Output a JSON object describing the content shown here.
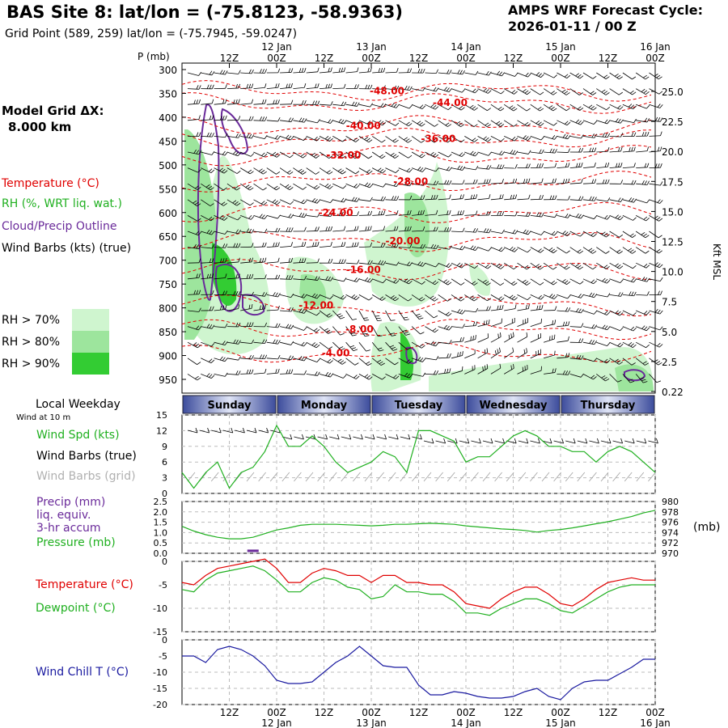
{
  "header": {
    "title": "BAS Site 8:  lat/lon = (-75.8123, -58.9363)",
    "subtitle": "Grid Point (589, 259) lat/lon = (-75.7945, -59.0247)",
    "cycle_label": "AMPS WRF Forecast Cycle:",
    "cycle_value": "2026-01-11 / 00  Z"
  },
  "left_labels": {
    "model_grid": "Model Grid ΔX:",
    "model_grid_value": "8.000 km",
    "temperature": "Temperature (°C)",
    "rh": "RH (%, WRT liq. wat.)",
    "cloud": "Cloud/Precip Outline",
    "wind_barbs": "Wind Barbs (kts) (true)",
    "rh70": "RH > 70%",
    "rh80": "RH > 80%",
    "rh90": "RH > 90%",
    "local_weekday": "Local Weekday",
    "wind_10m": "Wind at 10 m",
    "wind_spd": "Wind Spd (kts)",
    "wind_barbs_true": "Wind Barbs (true)",
    "wind_barbs_grid": "Wind Barbs (grid)",
    "precip": "Precip (mm)",
    "precip_2": "liq. equiv.",
    "precip_3": "3-hr accum",
    "pressure": "Pressure (mb)",
    "temp2": "Temperature (°C)",
    "dewpoint": "Dewpoint (°C)",
    "windchill": "Wind Chill T (°C)",
    "p_unit": "P (mb)",
    "right_unit": "Kft MSL",
    "mb_unit": "(mb)"
  },
  "colors": {
    "temperature": "#e00000",
    "rh": "#20b020",
    "cloud": "#6a2a9a",
    "windchill": "#1a1aa0",
    "grid_barbs": "#a0a0a0",
    "rh70": "#cff5cf",
    "rh80": "#9de59d",
    "rh90": "#33cc33"
  },
  "time_axis": {
    "top_hours": [
      "12Z",
      "00Z",
      "12Z",
      "00Z",
      "12Z",
      "00Z",
      "12Z",
      "00Z",
      "12Z",
      "00Z"
    ],
    "top_dates": [
      "12 Jan",
      "13 Jan",
      "14 Jan",
      "15 Jan",
      "16 Jan"
    ],
    "bottom_hours": [
      "12Z",
      "00Z",
      "12Z",
      "00Z",
      "12Z",
      "00Z",
      "12Z",
      "00Z",
      "12Z",
      "00Z"
    ],
    "bottom_dates": [
      "12 Jan",
      "13 Jan",
      "14 Jan",
      "15 Jan",
      "16 Jan"
    ],
    "weekdays": [
      "Sunday",
      "Monday",
      "Tuesday",
      "Wednesday",
      "Thursday"
    ]
  },
  "chart_data": [
    {
      "type": "heatmap",
      "name": "cross-section",
      "pressure_ticks": [
        300,
        350,
        400,
        450,
        500,
        550,
        600,
        650,
        700,
        750,
        800,
        850,
        900,
        950
      ],
      "height_ticks_kft": [
        "25.0",
        "22.5",
        "20.0",
        "17.5",
        "15.0",
        "12.5",
        "10.0",
        "7.5",
        "5.0",
        "2.5",
        "0.22"
      ],
      "isotherm_labels": [
        {
          "label": "-48.00",
          "hour": 52,
          "p": 345
        },
        {
          "label": "-44.00",
          "hour": 68,
          "p": 370
        },
        {
          "label": "-40.00",
          "hour": 46,
          "p": 418
        },
        {
          "label": "-36.00",
          "hour": 65,
          "p": 445
        },
        {
          "label": "-32.00",
          "hour": 41,
          "p": 480
        },
        {
          "label": "-28.00",
          "hour": 58,
          "p": 535
        },
        {
          "label": "-24.00",
          "hour": 39,
          "p": 600
        },
        {
          "label": "-20.00",
          "hour": 56,
          "p": 660
        },
        {
          "label": "-16.00",
          "hour": 46,
          "p": 720
        },
        {
          "label": "-12.00",
          "hour": 34,
          "p": 795
        },
        {
          "label": "-8.00",
          "hour": 45,
          "p": 845
        },
        {
          "label": "-4.00",
          "hour": 39,
          "p": 895
        }
      ],
      "forecast_hours": [
        0,
        120
      ]
    },
    {
      "type": "line",
      "name": "wind-speed",
      "hours": [
        0,
        3,
        6,
        9,
        12,
        15,
        18,
        21,
        24,
        27,
        30,
        33,
        36,
        39,
        42,
        45,
        48,
        51,
        54,
        57,
        60,
        63,
        66,
        69,
        72,
        75,
        78,
        81,
        84,
        87,
        90,
        93,
        96,
        99,
        102,
        105,
        108,
        111,
        114,
        117,
        120
      ],
      "values": [
        4,
        1,
        4,
        6,
        1,
        4,
        5,
        8,
        13,
        9,
        9,
        11,
        9,
        6,
        4,
        5,
        6,
        8,
        7,
        4,
        12,
        12,
        11,
        10,
        6,
        7,
        7,
        9,
        11,
        12,
        11,
        9,
        9,
        8,
        8,
        6,
        8,
        9,
        8,
        6,
        4
      ],
      "ylim": [
        0,
        15
      ],
      "yticks": [
        0,
        3,
        6,
        9,
        12,
        15
      ]
    },
    {
      "type": "line",
      "name": "pressure",
      "hours": [
        0,
        3,
        6,
        9,
        12,
        15,
        18,
        21,
        24,
        27,
        30,
        33,
        36,
        39,
        42,
        45,
        48,
        51,
        54,
        57,
        60,
        63,
        66,
        69,
        72,
        75,
        78,
        81,
        84,
        87,
        90,
        93,
        96,
        99,
        102,
        105,
        108,
        111,
        114,
        117,
        120
      ],
      "values": [
        975.2,
        974.3,
        973.6,
        973.1,
        972.8,
        972.8,
        973.1,
        973.8,
        974.5,
        974.9,
        975.4,
        975.6,
        975.6,
        975.6,
        975.5,
        975.4,
        975.3,
        975.4,
        975.6,
        975.6,
        975.7,
        975.8,
        975.7,
        975.6,
        975.3,
        975.1,
        974.9,
        974.7,
        974.6,
        974.4,
        974.1,
        974.4,
        974.6,
        974.9,
        975.3,
        975.7,
        976.1,
        976.6,
        977.1,
        977.8,
        978.3
      ],
      "precip_ylim": [
        0,
        2.5
      ],
      "precip_yticks": [
        "0.0",
        "0.5",
        "1.0",
        "1.5",
        "2.0",
        "2.5"
      ],
      "pressure_ylim": [
        970,
        980
      ],
      "pressure_yticks": [
        970,
        972,
        974,
        976,
        978,
        980
      ],
      "precip": [
        {
          "hour": 18,
          "value": 0.1
        }
      ]
    },
    {
      "type": "line",
      "name": "temperature-dewpoint",
      "series": [
        {
          "name": "Temperature",
          "hours": [
            0,
            3,
            6,
            9,
            12,
            15,
            18,
            21,
            24,
            27,
            30,
            33,
            36,
            39,
            42,
            45,
            48,
            51,
            54,
            57,
            60,
            63,
            66,
            69,
            72,
            75,
            78,
            81,
            84,
            87,
            90,
            93,
            96,
            99,
            102,
            105,
            108,
            111,
            114,
            117,
            120
          ],
          "values": [
            -4.5,
            -5,
            -3,
            -1.5,
            -1,
            -0.5,
            0,
            0.5,
            -1.5,
            -4.5,
            -4.5,
            -2.5,
            -1.5,
            -2,
            -3,
            -3,
            -4.5,
            -3,
            -3,
            -4.5,
            -4.5,
            -5,
            -5,
            -6.5,
            -9,
            -9.5,
            -10,
            -8,
            -6.5,
            -5.5,
            -5.5,
            -7,
            -9,
            -9.5,
            -8,
            -6,
            -4.5,
            -4,
            -3.5,
            -4,
            -4
          ]
        },
        {
          "name": "Dewpoint",
          "hours": [
            0,
            3,
            6,
            9,
            12,
            15,
            18,
            21,
            24,
            27,
            30,
            33,
            36,
            39,
            42,
            45,
            48,
            51,
            54,
            57,
            60,
            63,
            66,
            69,
            72,
            75,
            78,
            81,
            84,
            87,
            90,
            93,
            96,
            99,
            102,
            105,
            108,
            111,
            114,
            117,
            120
          ],
          "values": [
            -6,
            -6.5,
            -4,
            -2.5,
            -2,
            -1.5,
            -1,
            -2,
            -4,
            -6.5,
            -6.5,
            -4.5,
            -3.5,
            -4,
            -5.5,
            -6,
            -8,
            -7.5,
            -5,
            -6.5,
            -6.5,
            -7,
            -7,
            -8.5,
            -11,
            -11,
            -11.5,
            -10,
            -9,
            -8,
            -8,
            -9,
            -10.5,
            -11,
            -9.5,
            -8,
            -6.5,
            -5.5,
            -5,
            -5,
            -5
          ]
        }
      ],
      "ylim": [
        -15,
        0
      ],
      "yticks": [
        -15,
        -10,
        -5,
        0
      ]
    },
    {
      "type": "line",
      "name": "wind-chill",
      "hours": [
        0,
        3,
        6,
        9,
        12,
        15,
        18,
        21,
        24,
        27,
        30,
        33,
        36,
        39,
        42,
        45,
        48,
        51,
        54,
        57,
        60,
        63,
        66,
        69,
        72,
        75,
        78,
        81,
        84,
        87,
        90,
        93,
        96,
        99,
        102,
        105,
        108,
        111,
        114,
        117,
        120
      ],
      "values": [
        -5,
        -5,
        -7,
        -3,
        -2,
        -3,
        -5,
        -8,
        -12.5,
        -13.5,
        -13.5,
        -13,
        -10,
        -7,
        -5,
        -2,
        -5,
        -8,
        -8.5,
        -8.5,
        -14,
        -17,
        -17,
        -16,
        -16.5,
        -17.5,
        -18,
        -18,
        -17.5,
        -16,
        -15,
        -17.5,
        -18.5,
        -15,
        -13,
        -12.5,
        -12.5,
        -10.5,
        -8.5,
        -6,
        -6
      ],
      "ylim": [
        -20,
        0
      ],
      "yticks": [
        -20,
        -15,
        -10,
        -5,
        0
      ]
    }
  ]
}
